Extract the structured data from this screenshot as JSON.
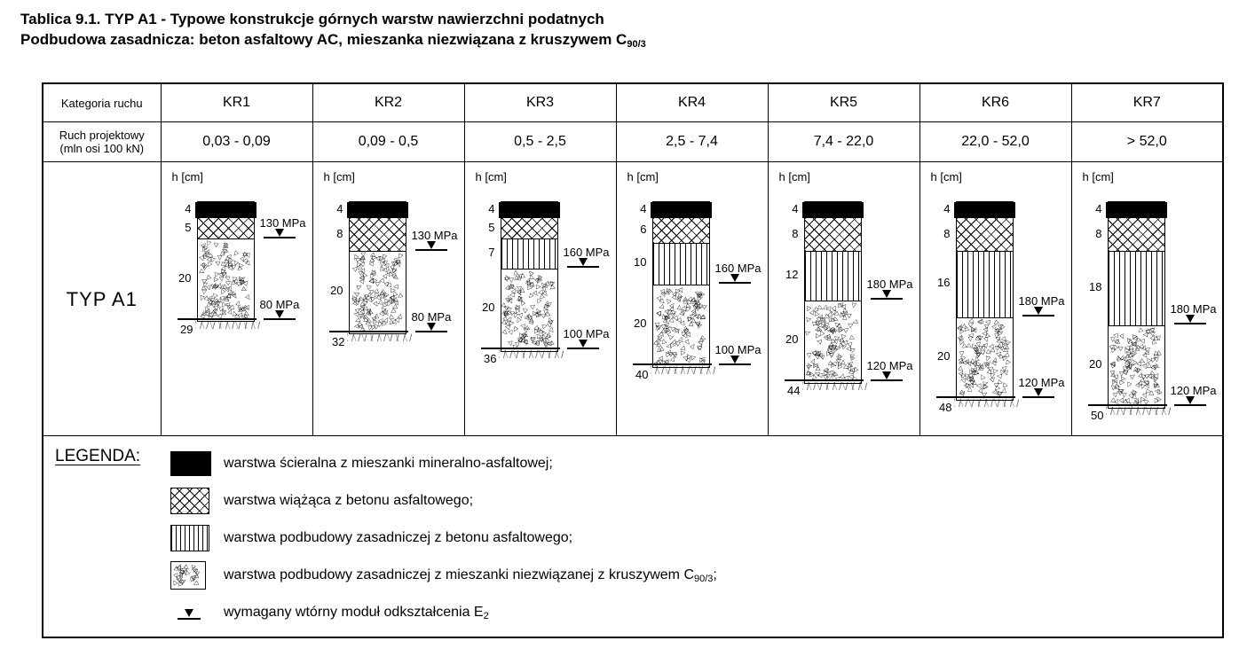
{
  "page": {
    "title_line1": "Tablica 9.1. TYP A1 - Typowe konstrukcje górnych warstw nawierzchni podatnych",
    "title_line2_pre": "Podbudowa zasadnicza: beton asfaltowy AC, mieszanka niezwiązana z kruszywem C",
    "title_line2_sub": "90/3"
  },
  "table": {
    "category_row_label": "Kategoria ruchu",
    "traffic_row_label_line1": "Ruch projektowy",
    "traffic_row_label_line2": "(mln osi 100 kN)",
    "type_label": "TYP A1",
    "height_axis_label": "h [cm]",
    "columns": [
      {
        "category": "KR1",
        "traffic_range": "0,03 - 0,09",
        "total_cm": "29",
        "layers": [
          {
            "pattern": "scieralna",
            "cm": 4,
            "label": "4"
          },
          {
            "pattern": "wiazaca",
            "cm": 5,
            "label": "5"
          },
          {
            "pattern": "niezwiazana",
            "cm": 20,
            "label": "20"
          }
        ],
        "markers": [
          {
            "label": "130 MPa",
            "depth_cm": 9
          },
          {
            "label": "80 MPa",
            "depth_cm": 29
          }
        ]
      },
      {
        "category": "KR2",
        "traffic_range": "0,09 - 0,5",
        "total_cm": "32",
        "layers": [
          {
            "pattern": "scieralna",
            "cm": 4,
            "label": "4"
          },
          {
            "pattern": "wiazaca",
            "cm": 8,
            "label": "8"
          },
          {
            "pattern": "niezwiazana",
            "cm": 20,
            "label": "20"
          }
        ],
        "markers": [
          {
            "label": "130 MPa",
            "depth_cm": 12
          },
          {
            "label": "80 MPa",
            "depth_cm": 32
          }
        ]
      },
      {
        "category": "KR3",
        "traffic_range": "0,5 - 2,5",
        "total_cm": "36",
        "layers": [
          {
            "pattern": "scieralna",
            "cm": 4,
            "label": "4"
          },
          {
            "pattern": "wiazaca",
            "cm": 5,
            "label": "5"
          },
          {
            "pattern": "podbudowa_ac",
            "cm": 7,
            "label": "7"
          },
          {
            "pattern": "niezwiazana",
            "cm": 20,
            "label": "20"
          }
        ],
        "markers": [
          {
            "label": "160 MPa",
            "depth_cm": 16
          },
          {
            "label": "100 MPa",
            "depth_cm": 36
          }
        ]
      },
      {
        "category": "KR4",
        "traffic_range": "2,5 - 7,4",
        "total_cm": "40",
        "layers": [
          {
            "pattern": "scieralna",
            "cm": 4,
            "label": "4"
          },
          {
            "pattern": "wiazaca",
            "cm": 6,
            "label": "6"
          },
          {
            "pattern": "podbudowa_ac",
            "cm": 10,
            "label": "10"
          },
          {
            "pattern": "niezwiazana",
            "cm": 20,
            "label": "20"
          }
        ],
        "markers": [
          {
            "label": "160 MPa",
            "depth_cm": 20
          },
          {
            "label": "100 MPa",
            "depth_cm": 40
          }
        ]
      },
      {
        "category": "KR5",
        "traffic_range": "7,4 - 22,0",
        "total_cm": "44",
        "layers": [
          {
            "pattern": "scieralna",
            "cm": 4,
            "label": "4"
          },
          {
            "pattern": "wiazaca",
            "cm": 8,
            "label": "8"
          },
          {
            "pattern": "podbudowa_ac",
            "cm": 12,
            "label": "12"
          },
          {
            "pattern": "niezwiazana",
            "cm": 20,
            "label": "20"
          }
        ],
        "markers": [
          {
            "label": "180 MPa",
            "depth_cm": 24
          },
          {
            "label": "120 MPa",
            "depth_cm": 44
          }
        ]
      },
      {
        "category": "KR6",
        "traffic_range": "22,0 - 52,0",
        "total_cm": "48",
        "layers": [
          {
            "pattern": "scieralna",
            "cm": 4,
            "label": "4"
          },
          {
            "pattern": "wiazaca",
            "cm": 8,
            "label": "8"
          },
          {
            "pattern": "podbudowa_ac",
            "cm": 16,
            "label": "16"
          },
          {
            "pattern": "niezwiazana",
            "cm": 20,
            "label": "20"
          }
        ],
        "markers": [
          {
            "label": "180 MPa",
            "depth_cm": 28
          },
          {
            "label": "120 MPa",
            "depth_cm": 48
          }
        ]
      },
      {
        "category": "KR7",
        "traffic_range": "> 52,0",
        "total_cm": "50",
        "layers": [
          {
            "pattern": "scieralna",
            "cm": 4,
            "label": "4"
          },
          {
            "pattern": "wiazaca",
            "cm": 8,
            "label": "8"
          },
          {
            "pattern": "podbudowa_ac",
            "cm": 18,
            "label": "18"
          },
          {
            "pattern": "niezwiazana",
            "cm": 20,
            "label": "20"
          }
        ],
        "markers": [
          {
            "label": "180 MPa",
            "depth_cm": 30
          },
          {
            "label": "120 MPa",
            "depth_cm": 50
          }
        ]
      }
    ]
  },
  "legend": {
    "heading": "LEGENDA:",
    "items": [
      {
        "swatch": "scieralna",
        "pre": "warstwa ścieralna z mieszanki mineralno-asfaltowej;",
        "sub": "",
        "post": ""
      },
      {
        "swatch": "wiazaca",
        "pre": "warstwa wiążąca z betonu asfaltowego;",
        "sub": "",
        "post": ""
      },
      {
        "swatch": "podbudowa_ac",
        "pre": "warstwa podbudowy zasadniczej z betonu asfaltowego;",
        "sub": "",
        "post": ""
      },
      {
        "swatch": "niezwiazana",
        "pre": "warstwa podbudowy zasadniczej z mieszanki niezwiązanej z kruszywem C",
        "sub": "90/3",
        "post": ";"
      },
      {
        "swatch": "marker",
        "pre": "wymagany wtórny moduł odkształcenia E",
        "sub": "2",
        "post": ""
      }
    ]
  },
  "colors": {
    "ink": "#000000",
    "background": "#ffffff"
  }
}
